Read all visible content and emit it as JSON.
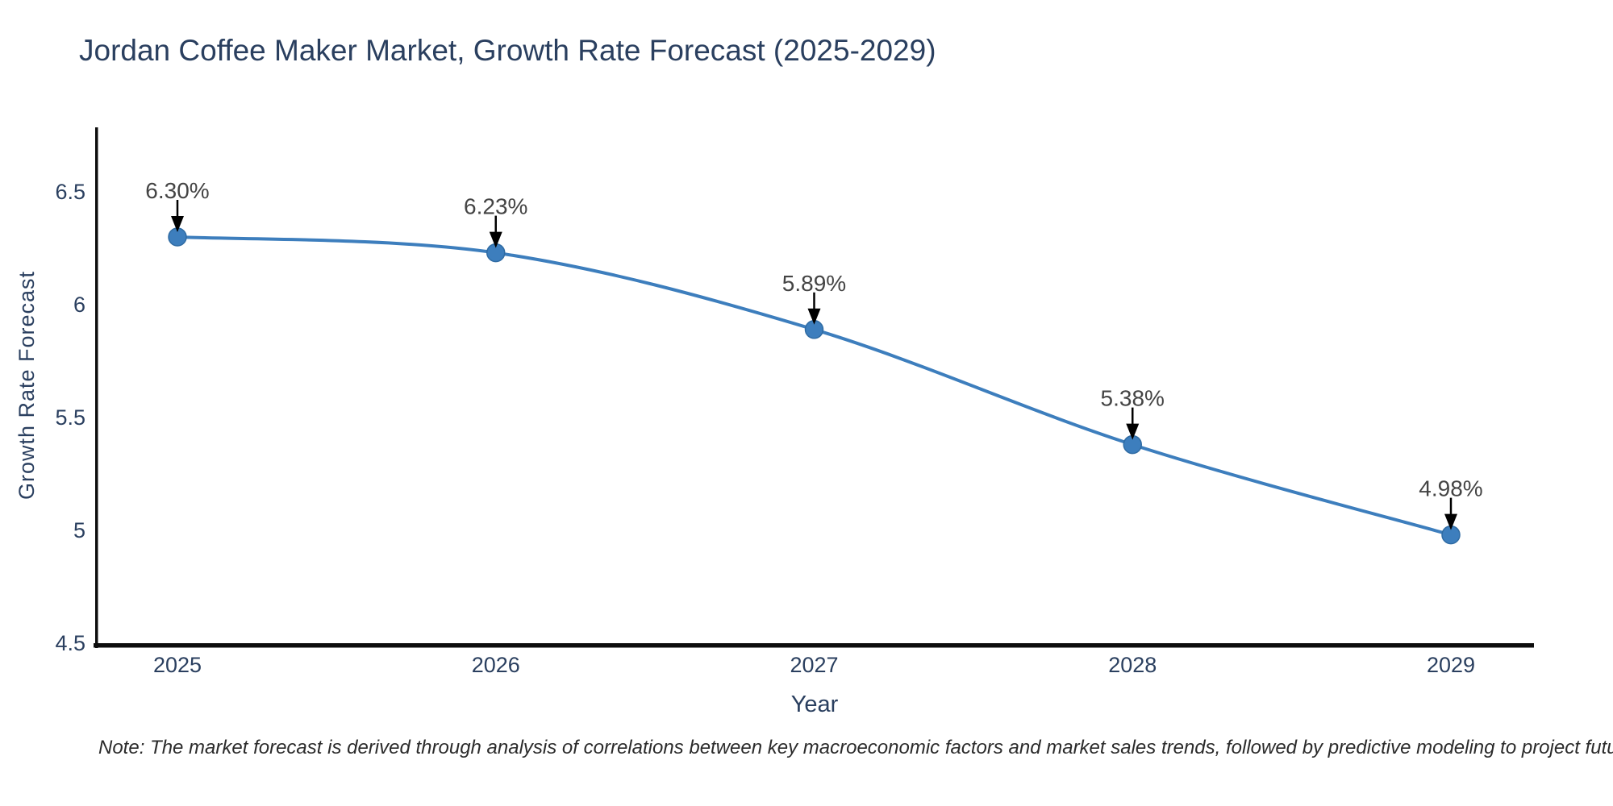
{
  "title": "Jordan Coffee Maker Market, Growth Rate Forecast (2025-2029)",
  "note": "Note: The market forecast is derived through analysis of correlations between key macroeconomic factors and market sales trends, followed by predictive modeling to project future sales",
  "chart_data": {
    "type": "line",
    "title": "Jordan Coffee Maker Market, Growth Rate Forecast (2025-2029)",
    "xlabel": "Year",
    "ylabel": "Growth Rate Forecast",
    "categories": [
      "2025",
      "2026",
      "2027",
      "2028",
      "2029"
    ],
    "series": [
      {
        "name": "Growth Rate Forecast",
        "values": [
          6.3,
          6.23,
          5.89,
          5.38,
          4.98
        ]
      }
    ],
    "point_labels": [
      "6.30%",
      "6.23%",
      "5.89%",
      "5.38%",
      "4.98%"
    ],
    "ytick_labels": [
      "4.5",
      "5",
      "5.5",
      "6",
      "6.5"
    ],
    "ytick_values": [
      4.5,
      5.0,
      5.5,
      6.0,
      6.5
    ],
    "ylim": [
      4.5,
      6.79
    ],
    "grid": false,
    "legend": "none",
    "line_shape": "spline",
    "annotations_have_arrows": true,
    "colors": {
      "line": "#3d7ebd",
      "marker": "#3d7ebd",
      "marker_edge": "#2f6ba3",
      "annotation_text": "#444444",
      "annotation_arrow": "#000000",
      "axis_line": "#0d0d0d",
      "tick_text": "#2a3f5f",
      "title_text": "#2a3f5f",
      "note_text": "#2b2b2b"
    }
  }
}
